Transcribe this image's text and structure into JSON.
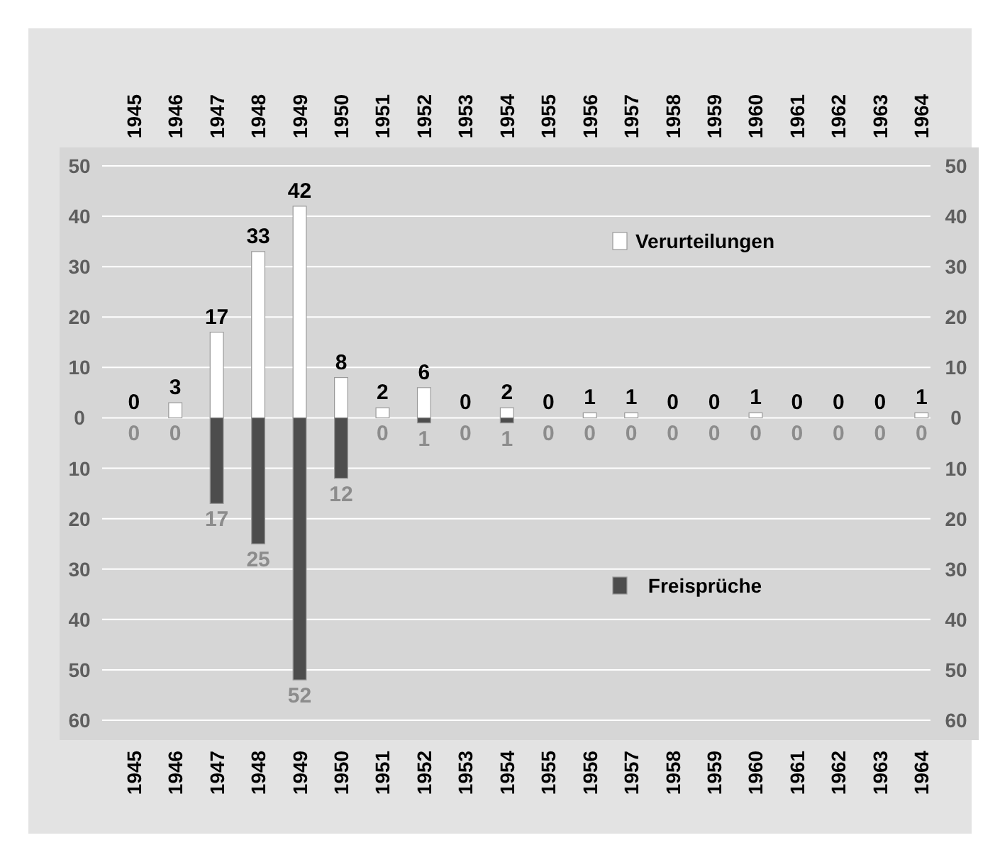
{
  "chart_data": {
    "type": "bar",
    "categories": [
      "1945",
      "1946",
      "1947",
      "1948",
      "1949",
      "1950",
      "1951",
      "1952",
      "1953",
      "1954",
      "1955",
      "1956",
      "1957",
      "1958",
      "1959",
      "1960",
      "1961",
      "1962",
      "1963",
      "1964"
    ],
    "series": [
      {
        "name": "Verurteilungen",
        "color": "#ffffff",
        "values": [
          0,
          3,
          17,
          33,
          42,
          8,
          2,
          6,
          0,
          2,
          0,
          1,
          1,
          0,
          0,
          1,
          0,
          0,
          0,
          1
        ],
        "value_labels": [
          "0",
          "3",
          "17",
          "33",
          "42",
          "8",
          "2",
          "6",
          "0",
          "2",
          "0",
          "1",
          "1",
          "0",
          "0",
          "1",
          "0",
          "0",
          "0",
          "1"
        ]
      },
      {
        "name": "Freisprüche",
        "color": "#4d4d4d",
        "axis": "y2",
        "values": [
          0,
          0,
          17,
          25,
          52,
          12,
          0,
          1,
          0,
          1,
          0,
          0,
          0,
          0,
          0,
          0,
          0,
          0,
          0,
          0
        ],
        "value_labels": [
          "0",
          "0",
          "17",
          "25",
          "52",
          "12",
          "0",
          "1",
          "0",
          "1",
          "0",
          "0",
          "0",
          "0",
          "0",
          "0",
          "0",
          "0",
          "0",
          "0"
        ]
      }
    ],
    "ylim": [
      -60,
      50
    ],
    "yticks": [
      {
        "value": -60,
        "label": "60"
      },
      {
        "value": -50,
        "label": "50"
      },
      {
        "value": -40,
        "label": "40"
      },
      {
        "value": -30,
        "label": "30"
      },
      {
        "value": -20,
        "label": "20"
      },
      {
        "value": -10,
        "label": "10"
      },
      0,
      10,
      20,
      30,
      40,
      50
    ],
    "y2lim": [
      60,
      -50
    ],
    "y2ticks": [
      60,
      50,
      40,
      30,
      20,
      10,
      0,
      {
        "value": -10,
        "label": "10"
      },
      {
        "value": -20,
        "label": "20"
      },
      {
        "value": -30,
        "label": "30"
      },
      {
        "value": -40,
        "label": "40"
      },
      {
        "value": -50,
        "label": "50"
      }
    ],
    "grid": "y",
    "legend": "right"
  }
}
